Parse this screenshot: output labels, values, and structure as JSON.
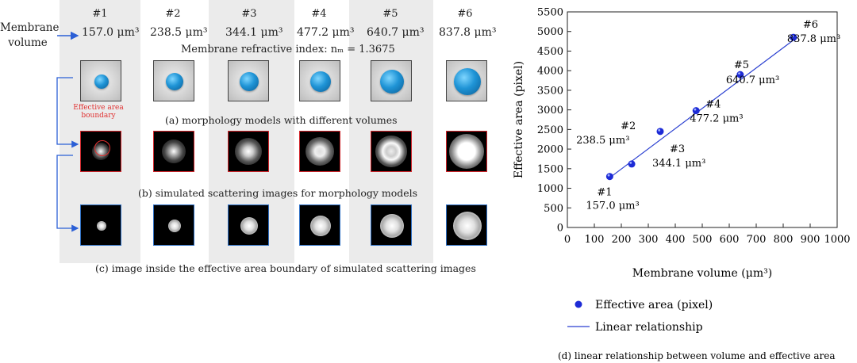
{
  "left": {
    "row_label": "Membrane volume",
    "samples": [
      {
        "id": "#1",
        "volume": "157.0 μm³"
      },
      {
        "id": "#2",
        "volume": "238.5 μm³"
      },
      {
        "id": "#3",
        "volume": "344.1 μm³"
      },
      {
        "id": "#4",
        "volume": "477.2 μm³"
      },
      {
        "id": "#5",
        "volume": "640.7 μm³"
      },
      {
        "id": "#6",
        "volume": "837.8 μm³"
      }
    ],
    "refractive_index": "Membrane refractive index: nₘ = 1.3675",
    "annotation": "Effective area boundary",
    "caption_a": "(a) morphology models with different volumes",
    "caption_b": "(b) simulated scattering images for morphology models",
    "caption_c": "(c) image inside the effective area boundary of simulated scattering images"
  },
  "colors": {
    "shade": "#ebebeb",
    "arrow": "#2b5fd6",
    "marker": "#1d2bd6",
    "line": "#2a3fd0",
    "tile_b_border": "#d0242a",
    "tile_c_border": "#2d6fc5",
    "annotation": "#e03030"
  },
  "chart_data": {
    "type": "scatter",
    "xlabel": "Membrane volume (μm³)",
    "ylabel": "Effective area (pixel)",
    "xlim": [
      0,
      1000
    ],
    "ylim": [
      0,
      5500
    ],
    "xticks": [
      0,
      100,
      200,
      300,
      400,
      500,
      600,
      700,
      800,
      900,
      1000
    ],
    "yticks": [
      0,
      500,
      1000,
      1500,
      2000,
      2500,
      3000,
      3500,
      4000,
      4500,
      5000,
      5500
    ],
    "series": [
      {
        "name": "Effective area (pixel)",
        "kind": "points",
        "x": [
          157.0,
          238.5,
          344.1,
          477.2,
          640.7,
          837.8
        ],
        "y": [
          1300,
          1620,
          2450,
          2980,
          3900,
          4850
        ]
      },
      {
        "name": "Linear relationship",
        "kind": "line",
        "x": [
          157.0,
          837.8
        ],
        "y": [
          1270,
          4780
        ]
      }
    ],
    "point_labels": [
      {
        "id": "#1",
        "volume": "157.0 μm³"
      },
      {
        "id": "#2",
        "volume": "238.5 μm³"
      },
      {
        "id": "#3",
        "volume": "344.1 μm³"
      },
      {
        "id": "#4",
        "volume": "477.2 μm³"
      },
      {
        "id": "#5",
        "volume": "640.7 μm³"
      },
      {
        "id": "#6",
        "volume": "837.8 μm³"
      }
    ],
    "legend": [
      "Effective area (pixel)",
      "Linear relationship"
    ],
    "caption": "(d) linear relationship between volume and effective area"
  }
}
